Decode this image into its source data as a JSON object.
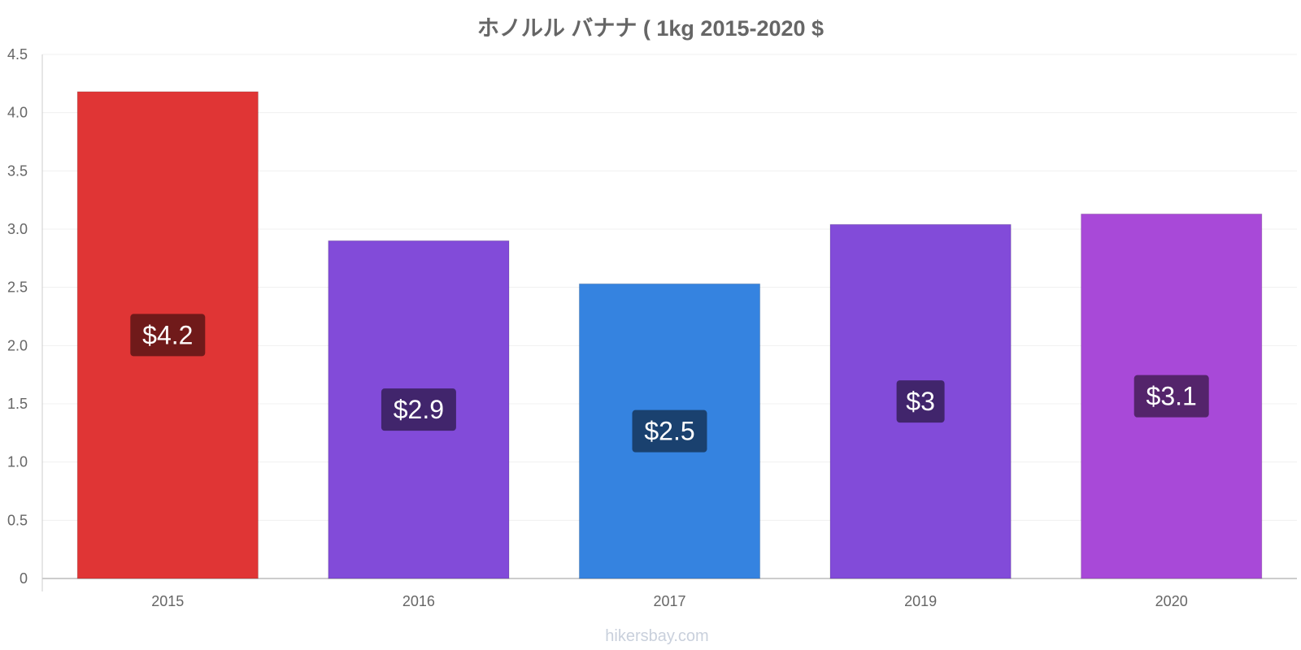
{
  "site": {
    "watermark": "hikersbay.com"
  },
  "chart_data": {
    "type": "bar",
    "title": "ホノルル バナナ ( 1kg 2015-2020 $",
    "xlabel": "",
    "ylabel": "",
    "ylim": [
      0,
      4.5
    ],
    "y_ticks": [
      0,
      0.5,
      1.0,
      1.5,
      2.0,
      2.5,
      3.0,
      3.5,
      4.0,
      4.5
    ],
    "y_tick_labels": [
      "0",
      "0.5",
      "1.0",
      "1.5",
      "2.0",
      "2.5",
      "3.0",
      "3.5",
      "4.0",
      "4.5"
    ],
    "grid": true,
    "legend": "none",
    "categories": [
      "2015",
      "2016",
      "2017",
      "2019",
      "2020"
    ],
    "values": [
      4.18,
      2.9,
      2.53,
      3.04,
      3.13
    ],
    "data_labels": [
      "$4.2",
      "$2.9",
      "$2.5",
      "$3",
      "$3.1"
    ],
    "colors": [
      "#e03535",
      "#824bd9",
      "#3583e0",
      "#824bd9",
      "#a849d8"
    ],
    "label_bg_colors": [
      "#701a1a",
      "#41256c",
      "#1a416f",
      "#41256c",
      "#54246b"
    ]
  }
}
